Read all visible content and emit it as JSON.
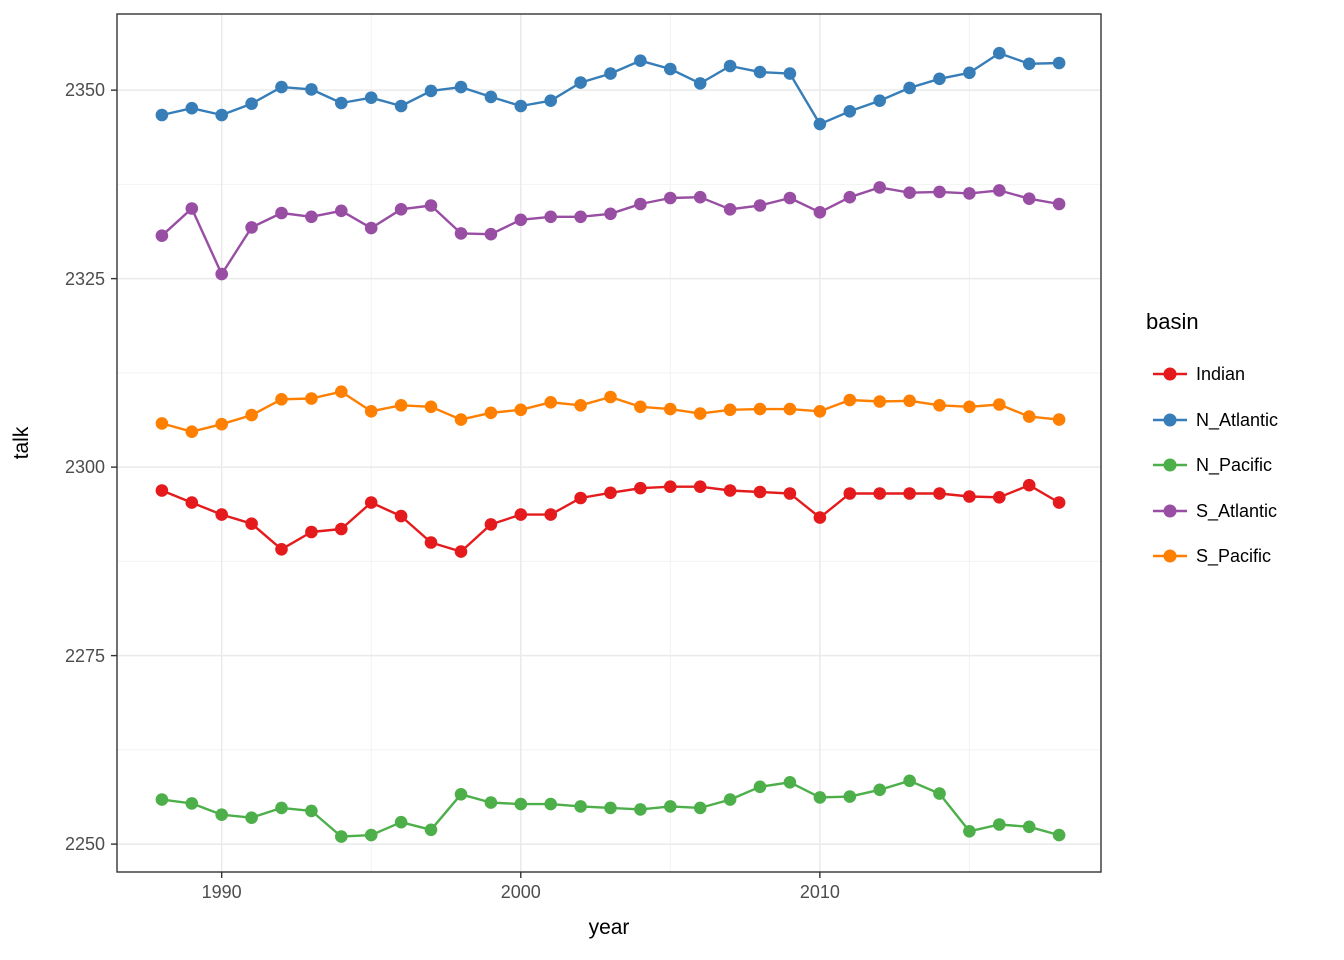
{
  "chart_data": {
    "type": "line",
    "title": "",
    "xlabel": "year",
    "ylabel": "talk",
    "x": [
      1988,
      1989,
      1990,
      1991,
      1992,
      1993,
      1994,
      1995,
      1996,
      1997,
      1998,
      1999,
      2000,
      2001,
      2002,
      2003,
      2004,
      2005,
      2006,
      2007,
      2008,
      2009,
      2010,
      2011,
      2012,
      2013,
      2014,
      2015,
      2016,
      2017,
      2018
    ],
    "x_ticks": [
      1990,
      2000,
      2010
    ],
    "x_minor_ticks": [
      1995,
      2005,
      2015
    ],
    "y_ticks": [
      2350,
      2325,
      2300,
      2275,
      2250
    ],
    "y_minor_ticks": [
      2337.5,
      2312.5,
      2287.5,
      2262.5
    ],
    "xlim": [
      1986.5,
      2019.4
    ],
    "ylim": [
      2246.3,
      2360.1
    ],
    "grid": true,
    "legend": {
      "title": "basin",
      "position": "right"
    },
    "series": [
      {
        "name": "Indian",
        "color": "#E41A1C",
        "values": [
          2296.9,
          2295.3,
          2293.7,
          2292.5,
          2289.1,
          2291.4,
          2291.8,
          2295.3,
          2293.5,
          2290.0,
          2288.8,
          2292.4,
          2293.7,
          2293.7,
          2295.9,
          2296.6,
          2297.2,
          2297.4,
          2297.4,
          2296.9,
          2296.7,
          2296.5,
          2293.3,
          2296.5,
          2296.5,
          2296.5,
          2296.5,
          2296.1,
          2296.0,
          2297.6,
          2295.3
        ]
      },
      {
        "name": "N_Atlantic",
        "color": "#377EB8",
        "values": [
          2346.7,
          2347.6,
          2346.7,
          2348.2,
          2350.4,
          2350.1,
          2348.3,
          2349.0,
          2347.9,
          2349.9,
          2350.4,
          2349.1,
          2347.9,
          2348.6,
          2351.0,
          2352.2,
          2353.9,
          2352.8,
          2350.9,
          2353.2,
          2352.4,
          2352.2,
          2345.5,
          2347.2,
          2348.6,
          2350.3,
          2351.5,
          2352.3,
          2354.9,
          2353.5,
          2353.6
        ]
      },
      {
        "name": "N_Pacific",
        "color": "#4DAF4A",
        "values": [
          2255.9,
          2255.4,
          2253.9,
          2253.5,
          2254.8,
          2254.4,
          2251.0,
          2251.2,
          2252.9,
          2251.9,
          2256.6,
          2255.5,
          2255.3,
          2255.3,
          2255.0,
          2254.8,
          2254.6,
          2255.0,
          2254.8,
          2255.9,
          2257.6,
          2258.2,
          2256.2,
          2256.3,
          2257.2,
          2258.4,
          2256.7,
          2251.7,
          2252.6,
          2252.3,
          2251.2
        ]
      },
      {
        "name": "S_Atlantic",
        "color": "#984EA3",
        "values": [
          2330.7,
          2334.3,
          2325.6,
          2331.8,
          2333.7,
          2333.2,
          2334.0,
          2331.7,
          2334.2,
          2334.7,
          2331.0,
          2330.9,
          2332.8,
          2333.2,
          2333.2,
          2333.6,
          2334.9,
          2335.7,
          2335.8,
          2334.2,
          2334.7,
          2335.7,
          2333.8,
          2335.8,
          2337.1,
          2336.4,
          2336.5,
          2336.3,
          2336.7,
          2335.6,
          2334.9
        ]
      },
      {
        "name": "S_Pacific",
        "color": "#FF7F00",
        "values": [
          2305.8,
          2304.7,
          2305.7,
          2306.9,
          2309.0,
          2309.1,
          2310.0,
          2307.4,
          2308.2,
          2308.0,
          2306.3,
          2307.2,
          2307.6,
          2308.6,
          2308.2,
          2309.3,
          2308.0,
          2307.7,
          2307.1,
          2307.6,
          2307.7,
          2307.7,
          2307.4,
          2308.9,
          2308.7,
          2308.8,
          2308.2,
          2308.0,
          2308.3,
          2306.7,
          2306.3
        ]
      }
    ],
    "style": {
      "panel_border_color": "#333333",
      "grid_major_color": "#EAEAEA",
      "grid_minor_color": "#F2F2F2",
      "tick_color": "#333333",
      "tick_label_color": "#4d4d4d"
    }
  }
}
